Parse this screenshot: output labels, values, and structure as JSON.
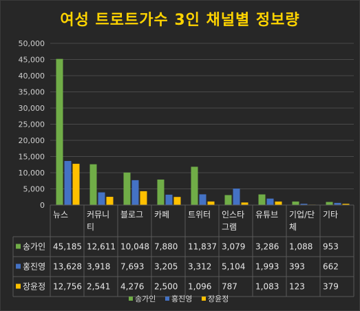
{
  "chart_data": {
    "type": "bar",
    "title": "여성 트로트가수 3인 채널별 정보량",
    "categories": [
      "뉴스",
      "커뮤니티",
      "블로그",
      "카페",
      "트위터",
      "인스타그램",
      "유튜브",
      "기업/단체",
      "기타"
    ],
    "category_display": [
      [
        "뉴스"
      ],
      [
        "커뮤니",
        "티"
      ],
      [
        "블로그"
      ],
      [
        "카페"
      ],
      [
        "트위터"
      ],
      [
        "인스타",
        "그램"
      ],
      [
        "유튜브"
      ],
      [
        "기업/단",
        "체"
      ],
      [
        "기타"
      ]
    ],
    "series": [
      {
        "name": "송가인",
        "color": "#70ad47",
        "values": [
          45185,
          12611,
          10048,
          7880,
          11837,
          3079,
          3286,
          1088,
          953
        ],
        "labels": [
          "45,185",
          "12,611",
          "10,048",
          "7,880",
          "11,837",
          "3,079",
          "3,286",
          "1,088",
          "953"
        ]
      },
      {
        "name": "홍진영",
        "color": "#4472c4",
        "values": [
          13628,
          3918,
          7693,
          3205,
          3312,
          5104,
          1993,
          393,
          662
        ],
        "labels": [
          "13,628",
          "3,918",
          "7,693",
          "3,205",
          "3,312",
          "5,104",
          "1,993",
          "393",
          "662"
        ]
      },
      {
        "name": "장윤정",
        "color": "#ffc000",
        "values": [
          12756,
          2541,
          4276,
          2500,
          1096,
          787,
          1083,
          123,
          379
        ],
        "labels": [
          "12,756",
          "2,541",
          "4,276",
          "2,500",
          "1,096",
          "787",
          "1,083",
          "123",
          "379"
        ]
      }
    ],
    "ylim": [
      0,
      50000
    ],
    "yticks": [
      0,
      5000,
      10000,
      15000,
      20000,
      25000,
      30000,
      35000,
      40000,
      45000,
      50000
    ],
    "ytick_labels": [
      "0",
      "5,000",
      "10,000",
      "15,000",
      "20,000",
      "25,000",
      "30,000",
      "35,000",
      "40,000",
      "45,000",
      "50,000"
    ],
    "grid": true,
    "legend": "bottom",
    "data_table": true
  }
}
